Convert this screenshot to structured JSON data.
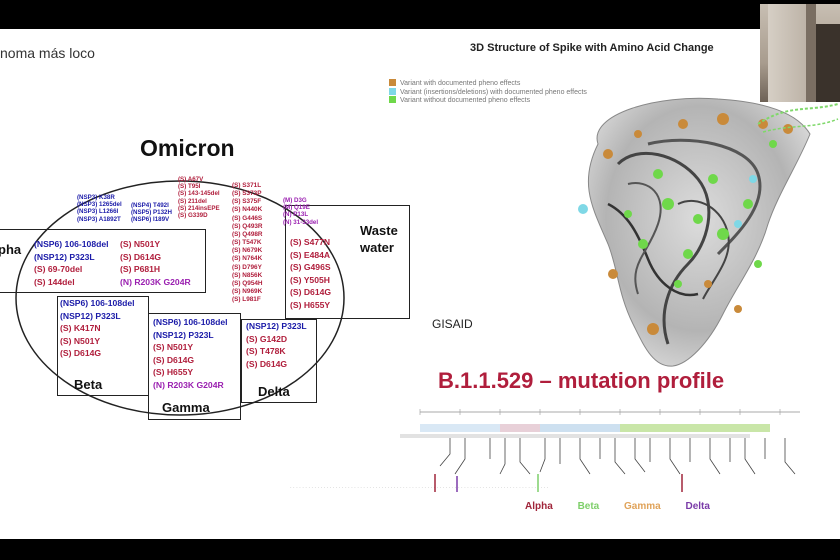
{
  "slide": {
    "top_left_title": "noma más loco",
    "omicron_title": "Omicron",
    "labels": {
      "alpha": "pha",
      "beta": "Beta",
      "gamma": "Gamma",
      "delta": "Delta",
      "waste_1": "Waste",
      "waste_2": "water",
      "gisaid": "GISAID"
    },
    "omicron_top_left": [
      "(NSP3) K38R",
      "(NSP3) 1265del",
      "(NSP3) L1266I",
      "(NSP3) A1892T"
    ],
    "omicron_top_mid": [
      "(NSP4) T492I",
      "(NSP5) P132H",
      "(NSP6) I189V"
    ],
    "omicron_top_red": [
      "(S) A67V",
      "(S) T95I",
      "(S) 143-145del",
      "(S) 211del",
      "(S) 214insEPE",
      "(S) G339D"
    ],
    "omicron_col4": [
      "(S) S371L",
      "(S) S373P",
      "(S) S375F",
      "(S) N440K",
      "(S) G446S",
      "(S) Q493R",
      "(S) Q498R",
      "(S) T547K",
      "(S) N679K",
      "(S) N764K",
      "(S) D796Y",
      "(S) N856K",
      "(S) Q954H",
      "(S) N969K",
      "(S) L981F"
    ],
    "omicron_col5": [
      "(M) D3G",
      "(M) Q19E",
      "(N) P13L",
      "(N) 31-33del"
    ],
    "alpha_overlap": [
      {
        "t": "(NSP6) 106-108del",
        "c": "blue"
      },
      {
        "t": "(NSP12) P323L",
        "c": "blue"
      },
      {
        "t": "(S) 69-70del",
        "c": "red"
      },
      {
        "t": "(S) 144del",
        "c": "red"
      }
    ],
    "alpha_overlap_right": [
      {
        "t": "(S) N501Y",
        "c": "red"
      },
      {
        "t": "(S) D614G",
        "c": "red"
      },
      {
        "t": "(S) P681H",
        "c": "red"
      },
      {
        "t": "(N) R203K G204R",
        "c": "purple"
      }
    ],
    "waste_overlap": [
      {
        "t": "(S) S477N",
        "c": "red"
      },
      {
        "t": "(S) E484A",
        "c": "red"
      },
      {
        "t": "(S) G496S",
        "c": "red"
      },
      {
        "t": "(S) Y505H",
        "c": "red"
      },
      {
        "t": "(S) D614G",
        "c": "red"
      },
      {
        "t": "(S) H655Y",
        "c": "red"
      }
    ],
    "beta_overlap": [
      {
        "t": "(NSP6) 106-108del",
        "c": "blue"
      },
      {
        "t": "(NSP12) P323L",
        "c": "blue"
      },
      {
        "t": "(S) K417N",
        "c": "red"
      },
      {
        "t": "(S) N501Y",
        "c": "red"
      },
      {
        "t": "(S) D614G",
        "c": "red"
      }
    ],
    "gamma_overlap": [
      {
        "t": "(NSP6) 106-108del",
        "c": "blue"
      },
      {
        "t": "(NSP12) P323L",
        "c": "blue"
      },
      {
        "t": "(S) N501Y",
        "c": "red"
      },
      {
        "t": "(S) D614G",
        "c": "red"
      },
      {
        "t": "(S) H655Y",
        "c": "red"
      },
      {
        "t": "(N) R203K G204R",
        "c": "purple"
      }
    ],
    "delta_overlap": [
      {
        "t": "(NSP12) P323L",
        "c": "blue"
      },
      {
        "t": "(S) G142D",
        "c": "red"
      },
      {
        "t": "(S) T478K",
        "c": "red"
      },
      {
        "t": "(S) D614G",
        "c": "red"
      }
    ],
    "structure_title": "3D Structure of Spike with Amino Acid Change",
    "structure_legend": [
      {
        "label": "Variant with documented pheno effects",
        "color": "#c98a3a"
      },
      {
        "label": "Variant (insertions/deletions) with documented pheno effects",
        "color": "#7fd8e6"
      },
      {
        "label": "Variant without documented pheno effects",
        "color": "#6fd84a"
      }
    ],
    "profile_title": "B.1.1.529 – mutation profile",
    "variant_legend": [
      {
        "label": "Alpha",
        "color": "#a0253a"
      },
      {
        "label": "Beta",
        "color": "#7ecf6a"
      },
      {
        "label": "Gamma",
        "color": "#e0a35a"
      },
      {
        "label": "Delta",
        "color": "#7a3aa8"
      }
    ]
  }
}
